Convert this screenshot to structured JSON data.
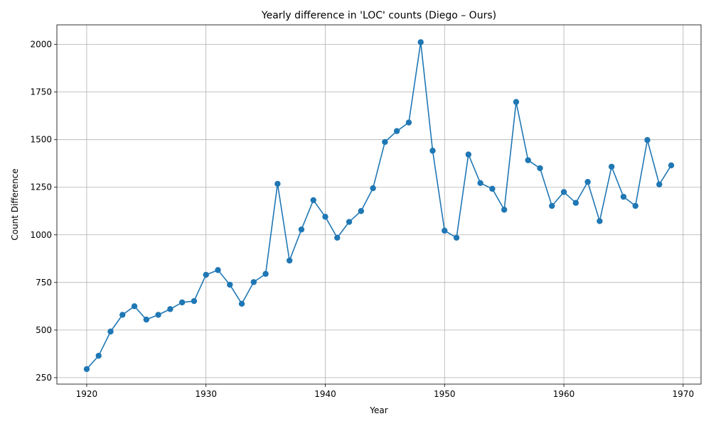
{
  "chart_data": {
    "type": "line",
    "title": "Yearly difference in 'LOC' counts (Diego – Ours)",
    "xlabel": "Year",
    "ylabel": "Count Difference",
    "xlim": [
      1917.5,
      1971.5
    ],
    "ylim": [
      216,
      2103
    ],
    "x_ticks": [
      1920,
      1930,
      1940,
      1950,
      1960,
      1970
    ],
    "y_ticks": [
      250,
      500,
      750,
      1000,
      1250,
      1500,
      1750,
      2000
    ],
    "grid": true,
    "marker": "circle",
    "line_color": "#1f77b4",
    "series": [
      {
        "x": [
          1920,
          1921,
          1922,
          1923,
          1924,
          1925,
          1926,
          1927,
          1928,
          1929,
          1930,
          1931,
          1932,
          1933,
          1934,
          1935,
          1936,
          1937,
          1938,
          1939,
          1940,
          1941,
          1942,
          1943,
          1944,
          1945,
          1946,
          1947,
          1948,
          1949,
          1950,
          1951,
          1952,
          1953,
          1954,
          1955,
          1956,
          1957,
          1958,
          1959,
          1960,
          1961,
          1962,
          1963,
          1964,
          1965,
          1966,
          1967,
          1968,
          1969
        ],
        "y": [
          295,
          365,
          492,
          580,
          625,
          555,
          580,
          610,
          645,
          652,
          790,
          815,
          738,
          638,
          752,
          795,
          1268,
          865,
          1028,
          1182,
          1095,
          985,
          1068,
          1125,
          1245,
          1488,
          1545,
          1590,
          2012,
          1442,
          1022,
          985,
          1422,
          1272,
          1242,
          1132,
          1698,
          1392,
          1350,
          1152,
          1225,
          1168,
          1278,
          1072,
          1358,
          1200,
          1152,
          1498,
          1265,
          1365
        ]
      }
    ]
  }
}
